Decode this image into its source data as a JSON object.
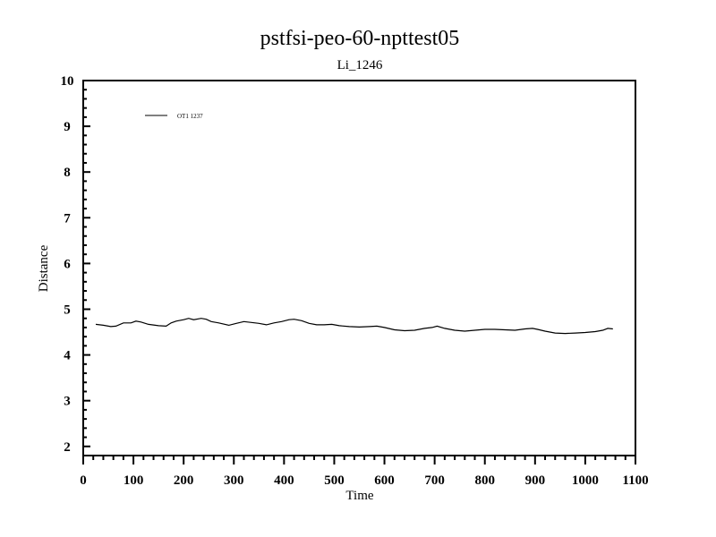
{
  "chart_data": {
    "type": "line",
    "title": "pstfsi-peo-60-npttest05",
    "subtitle": "Li_1246",
    "xlabel": "Time",
    "ylabel": "Distance",
    "xlim": [
      0,
      1100
    ],
    "ylim": [
      1.8,
      10
    ],
    "x_ticks": [
      "0",
      "100",
      "200",
      "300",
      "400",
      "500",
      "600",
      "700",
      "800",
      "900",
      "1000",
      "1100"
    ],
    "y_ticks": [
      "2",
      "3",
      "4",
      "5",
      "6",
      "7",
      "8",
      "9",
      "10"
    ],
    "grid": false,
    "legend_position": "top-left",
    "series": [
      {
        "name": "OT1 1237",
        "color": "#000000",
        "x": [
          25,
          40,
          55,
          65,
          80,
          95,
          105,
          115,
          130,
          150,
          165,
          175,
          185,
          200,
          210,
          220,
          235,
          245,
          255,
          270,
          290,
          305,
          320,
          335,
          350,
          365,
          380,
          395,
          410,
          420,
          435,
          450,
          465,
          480,
          495,
          510,
          530,
          550,
          570,
          585,
          600,
          620,
          640,
          660,
          680,
          695,
          705,
          720,
          740,
          760,
          780,
          800,
          820,
          840,
          860,
          880,
          895,
          905,
          920,
          940,
          960,
          980,
          1000,
          1020,
          1035,
          1045,
          1055
        ],
        "y": [
          4.67,
          4.65,
          4.62,
          4.63,
          4.7,
          4.7,
          4.74,
          4.72,
          4.67,
          4.64,
          4.63,
          4.7,
          4.74,
          4.77,
          4.8,
          4.77,
          4.8,
          4.78,
          4.73,
          4.7,
          4.65,
          4.69,
          4.73,
          4.71,
          4.69,
          4.66,
          4.7,
          4.73,
          4.77,
          4.78,
          4.75,
          4.69,
          4.66,
          4.66,
          4.67,
          4.64,
          4.62,
          4.61,
          4.62,
          4.63,
          4.6,
          4.55,
          4.53,
          4.54,
          4.58,
          4.6,
          4.63,
          4.58,
          4.54,
          4.52,
          4.54,
          4.56,
          4.56,
          4.55,
          4.54,
          4.57,
          4.58,
          4.56,
          4.52,
          4.48,
          4.47,
          4.48,
          4.49,
          4.51,
          4.54,
          4.58,
          4.57
        ]
      }
    ]
  }
}
